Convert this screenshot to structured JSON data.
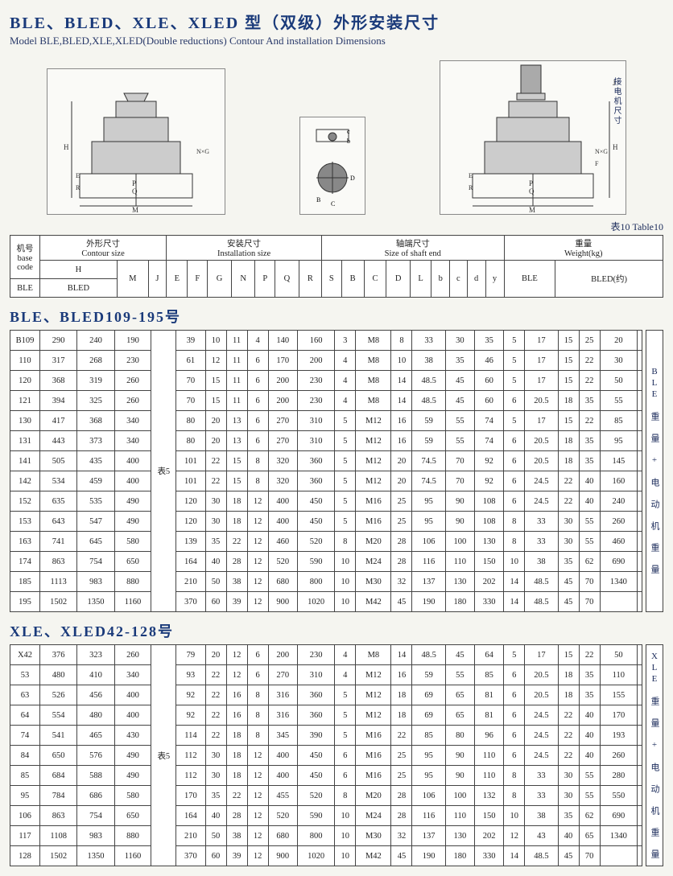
{
  "title_cn": "BLE、BLED、XLE、XLED 型（双级）外形安装尺寸",
  "title_en": "Model BLE,BLED,XLE,XLED(Double reductions) Contour And installation Dimensions",
  "table_caption": "表10 Table10",
  "header": {
    "machine_code_cn": "机号",
    "machine_code_en": "base code",
    "contour_cn": "外形尺寸",
    "contour_en": "Contour size",
    "install_cn": "安装尺寸",
    "install_en": "Installation size",
    "shaft_cn": "轴端尺寸",
    "shaft_en": "Size of shaft end",
    "weight_cn": "重量",
    "weight_en": "Weight(kg)",
    "cols": [
      "BLE",
      "BLED",
      "M",
      "J",
      "E",
      "F",
      "G",
      "N",
      "P",
      "Q",
      "R",
      "S",
      "B",
      "C",
      "D",
      "L",
      "b",
      "c",
      "d",
      "y",
      "BLE",
      "BLED(约)"
    ],
    "h_label": "H"
  },
  "section1": {
    "title": "BLE、BLED109-195号",
    "side": "BLE 重 量 + 电 动 机 重 量",
    "table5": "表5",
    "rows": [
      [
        "B109",
        "290",
        "240",
        "190",
        "",
        "39",
        "10",
        "11",
        "4",
        "140",
        "160",
        "3",
        "M8",
        "8",
        "33",
        "30",
        "35",
        "5",
        "17",
        "15",
        "25",
        "20",
        ""
      ],
      [
        "110",
        "317",
        "268",
        "230",
        "",
        "61",
        "12",
        "11",
        "6",
        "170",
        "200",
        "4",
        "M8",
        "10",
        "38",
        "35",
        "46",
        "5",
        "17",
        "15",
        "22",
        "30",
        ""
      ],
      [
        "120",
        "368",
        "319",
        "260",
        "",
        "70",
        "15",
        "11",
        "6",
        "200",
        "230",
        "4",
        "M8",
        "14",
        "48.5",
        "45",
        "60",
        "5",
        "17",
        "15",
        "22",
        "50",
        ""
      ],
      [
        "121",
        "394",
        "325",
        "260",
        "",
        "70",
        "15",
        "11",
        "6",
        "200",
        "230",
        "4",
        "M8",
        "14",
        "48.5",
        "45",
        "60",
        "6",
        "20.5",
        "18",
        "35",
        "55",
        ""
      ],
      [
        "130",
        "417",
        "368",
        "340",
        "",
        "80",
        "20",
        "13",
        "6",
        "270",
        "310",
        "5",
        "M12",
        "16",
        "59",
        "55",
        "74",
        "5",
        "17",
        "15",
        "22",
        "85",
        ""
      ],
      [
        "131",
        "443",
        "373",
        "340",
        "表5",
        "80",
        "20",
        "13",
        "6",
        "270",
        "310",
        "5",
        "M12",
        "16",
        "59",
        "55",
        "74",
        "6",
        "20.5",
        "18",
        "35",
        "95",
        ""
      ],
      [
        "141",
        "505",
        "435",
        "400",
        "",
        "101",
        "22",
        "15",
        "8",
        "320",
        "360",
        "5",
        "M12",
        "20",
        "74.5",
        "70",
        "92",
        "6",
        "20.5",
        "18",
        "35",
        "145",
        ""
      ],
      [
        "142",
        "534",
        "459",
        "400",
        "",
        "101",
        "22",
        "15",
        "8",
        "320",
        "360",
        "5",
        "M12",
        "20",
        "74.5",
        "70",
        "92",
        "6",
        "24.5",
        "22",
        "40",
        "160",
        ""
      ],
      [
        "152",
        "635",
        "535",
        "490",
        "",
        "120",
        "30",
        "18",
        "12",
        "400",
        "450",
        "5",
        "M16",
        "25",
        "95",
        "90",
        "108",
        "6",
        "24.5",
        "22",
        "40",
        "240",
        ""
      ],
      [
        "153",
        "643",
        "547",
        "490",
        "",
        "120",
        "30",
        "18",
        "12",
        "400",
        "450",
        "5",
        "M16",
        "25",
        "95",
        "90",
        "108",
        "8",
        "33",
        "30",
        "55",
        "260",
        ""
      ],
      [
        "163",
        "741",
        "645",
        "580",
        "",
        "139",
        "35",
        "22",
        "12",
        "460",
        "520",
        "8",
        "M20",
        "28",
        "106",
        "100",
        "130",
        "8",
        "33",
        "30",
        "55",
        "460",
        ""
      ],
      [
        "174",
        "863",
        "754",
        "650",
        "",
        "164",
        "40",
        "28",
        "12",
        "520",
        "590",
        "10",
        "M24",
        "28",
        "116",
        "110",
        "150",
        "10",
        "38",
        "35",
        "62",
        "690",
        ""
      ],
      [
        "185",
        "1113",
        "983",
        "880",
        "",
        "210",
        "50",
        "38",
        "12",
        "680",
        "800",
        "10",
        "M30",
        "32",
        "137",
        "130",
        "202",
        "14",
        "48.5",
        "45",
        "70",
        "1340",
        ""
      ],
      [
        "195",
        "1502",
        "1350",
        "1160",
        "",
        "370",
        "60",
        "39",
        "12",
        "900",
        "1020",
        "10",
        "M42",
        "45",
        "190",
        "180",
        "330",
        "14",
        "48.5",
        "45",
        "70",
        "",
        ""
      ]
    ]
  },
  "section2": {
    "title": "XLE、XLED42-128号",
    "side": "XLE 重 量 + 电 动 机 重 量",
    "table5": "表5",
    "rows": [
      [
        "X42",
        "376",
        "323",
        "260",
        "",
        "79",
        "20",
        "12",
        "6",
        "200",
        "230",
        "4",
        "M8",
        "14",
        "48.5",
        "45",
        "64",
        "5",
        "17",
        "15",
        "22",
        "50",
        ""
      ],
      [
        "53",
        "480",
        "410",
        "340",
        "",
        "93",
        "22",
        "12",
        "6",
        "270",
        "310",
        "4",
        "M12",
        "16",
        "59",
        "55",
        "85",
        "6",
        "20.5",
        "18",
        "35",
        "110",
        ""
      ],
      [
        "63",
        "526",
        "456",
        "400",
        "",
        "92",
        "22",
        "16",
        "8",
        "316",
        "360",
        "5",
        "M12",
        "18",
        "69",
        "65",
        "81",
        "6",
        "20.5",
        "18",
        "35",
        "155",
        ""
      ],
      [
        "64",
        "554",
        "480",
        "400",
        "",
        "92",
        "22",
        "16",
        "8",
        "316",
        "360",
        "5",
        "M12",
        "18",
        "69",
        "65",
        "81",
        "6",
        "24.5",
        "22",
        "40",
        "170",
        ""
      ],
      [
        "74",
        "541",
        "465",
        "430",
        "",
        "114",
        "22",
        "18",
        "8",
        "345",
        "390",
        "5",
        "M16",
        "22",
        "85",
        "80",
        "96",
        "6",
        "24.5",
        "22",
        "40",
        "193",
        ""
      ],
      [
        "84",
        "650",
        "576",
        "490",
        "表5",
        "112",
        "30",
        "18",
        "12",
        "400",
        "450",
        "6",
        "M16",
        "25",
        "95",
        "90",
        "110",
        "6",
        "24.5",
        "22",
        "40",
        "260",
        ""
      ],
      [
        "85",
        "684",
        "588",
        "490",
        "",
        "112",
        "30",
        "18",
        "12",
        "400",
        "450",
        "6",
        "M16",
        "25",
        "95",
        "90",
        "110",
        "8",
        "33",
        "30",
        "55",
        "280",
        ""
      ],
      [
        "95",
        "784",
        "686",
        "580",
        "",
        "170",
        "35",
        "22",
        "12",
        "455",
        "520",
        "8",
        "M20",
        "28",
        "106",
        "100",
        "132",
        "8",
        "33",
        "30",
        "55",
        "550",
        ""
      ],
      [
        "106",
        "863",
        "754",
        "650",
        "",
        "164",
        "40",
        "28",
        "12",
        "520",
        "590",
        "10",
        "M24",
        "28",
        "116",
        "110",
        "150",
        "10",
        "38",
        "35",
        "62",
        "690",
        ""
      ],
      [
        "117",
        "1108",
        "983",
        "880",
        "",
        "210",
        "50",
        "38",
        "12",
        "680",
        "800",
        "10",
        "M30",
        "32",
        "137",
        "130",
        "202",
        "12",
        "43",
        "40",
        "65",
        "1340",
        ""
      ],
      [
        "128",
        "1502",
        "1350",
        "1160",
        "",
        "370",
        "60",
        "39",
        "12",
        "900",
        "1020",
        "10",
        "M42",
        "45",
        "190",
        "180",
        "330",
        "14",
        "48.5",
        "45",
        "70",
        "",
        ""
      ]
    ]
  },
  "diagram_side_label": "接电机尺寸"
}
